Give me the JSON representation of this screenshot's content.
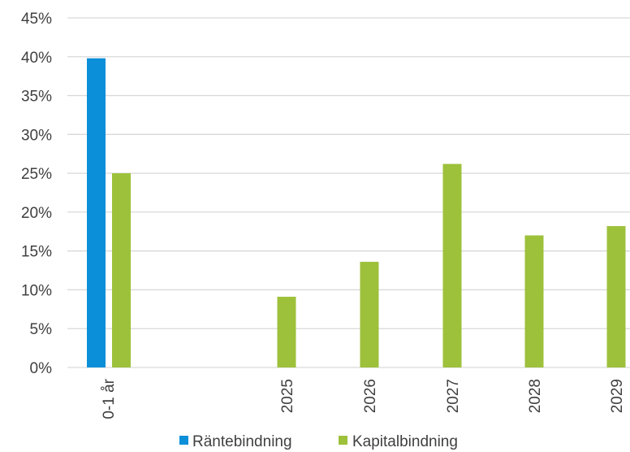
{
  "chart_data": {
    "type": "bar",
    "categories": [
      "0-1 år",
      "",
      "2025",
      "2026",
      "2027",
      "2028",
      "2029"
    ],
    "series": [
      {
        "name": "Räntebindning",
        "color": "#0a8fd8",
        "values": [
          39.8,
          null,
          null,
          null,
          null,
          null,
          null
        ]
      },
      {
        "name": "Kapitalbindning",
        "color": "#9dc13b",
        "values": [
          25.0,
          null,
          9.1,
          13.6,
          26.2,
          17.0,
          18.2
        ]
      }
    ],
    "ylim": [
      0,
      45
    ],
    "yticks": [
      "0%",
      "5%",
      "10%",
      "15%",
      "20%",
      "25%",
      "30%",
      "35%",
      "40%",
      "45%"
    ],
    "ytick_values": [
      0,
      5,
      10,
      15,
      20,
      25,
      30,
      35,
      40,
      45
    ],
    "grid": true,
    "legend_position": "bottom",
    "title": "",
    "xlabel": "",
    "ylabel": ""
  }
}
